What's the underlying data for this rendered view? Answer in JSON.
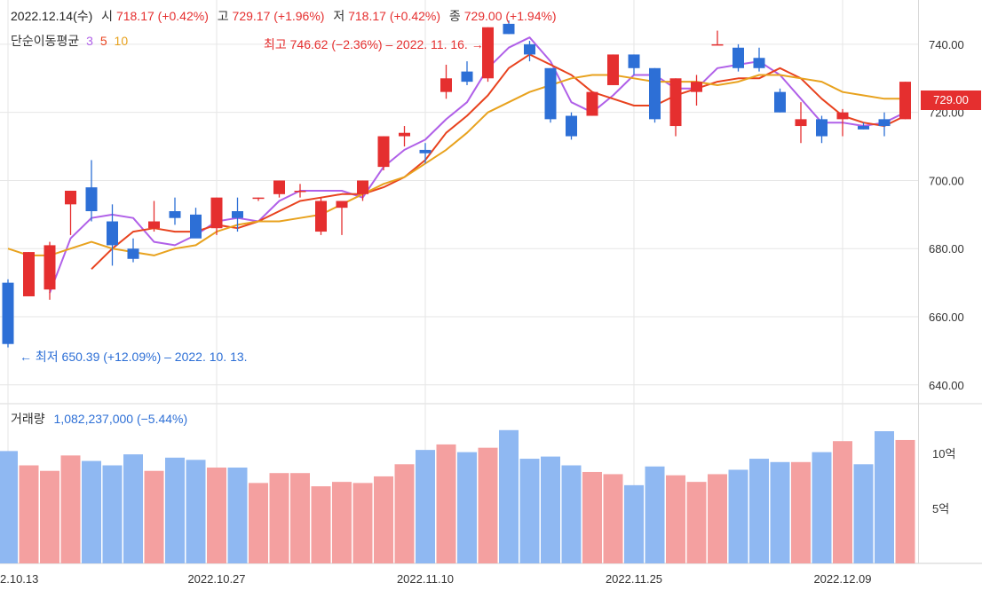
{
  "header": {
    "date": "2022.12.14(수)",
    "open_label": "시",
    "open_value": "718.17 (+0.42%)",
    "high_label": "고",
    "high_value": "729.17 (+1.96%)",
    "low_label": "저",
    "low_value": "718.17 (+0.42%)",
    "close_label": "종",
    "close_value": "729.00 (+1.94%)"
  },
  "moving_average": {
    "label": "단순이동평균",
    "periods": [
      "3",
      "5",
      "10"
    ],
    "colors": [
      "#b060e8",
      "#e8421e",
      "#e8a21e"
    ]
  },
  "volume_panel": {
    "label": "거래량",
    "value": "1,082,237,000 (−5.44%)"
  },
  "annotations": {
    "max": "최고 746.62 (−2.36%) – 2022. 11. 16.",
    "min": "최저 650.39 (+12.09%) – 2022. 10. 13."
  },
  "current_price_tag": "729.00",
  "colors": {
    "up": "#e52f2f",
    "down": "#2d6fd6",
    "up_volume": "#f4a0a0",
    "down_volume": "#8fb8f2",
    "grid": "#e6e6e6"
  },
  "chart_data": {
    "type": "candlestick",
    "x_ticks": [
      "2.10.13",
      "2022.10.27",
      "2022.11.10",
      "2022.11.25",
      "2022.12.09"
    ],
    "x_tick_index": [
      0,
      10,
      20,
      30,
      40
    ],
    "y_ticks": [
      "640.00",
      "660.00",
      "680.00",
      "700.00",
      "720.00",
      "740.00"
    ],
    "ylim": [
      635,
      753
    ],
    "volume_ticks": [
      "5억",
      "10억"
    ],
    "volume_tick_values": [
      5,
      10
    ],
    "volume_unit": "억",
    "volume_lim": [
      0,
      14.5
    ],
    "candles": [
      {
        "o": 670,
        "h": 671,
        "l": 651,
        "c": 652
      },
      {
        "o": 666,
        "h": 679,
        "l": 666,
        "c": 679
      },
      {
        "o": 668,
        "h": 682,
        "l": 665,
        "c": 681
      },
      {
        "o": 693,
        "h": 697,
        "l": 684,
        "c": 697
      },
      {
        "o": 698,
        "h": 706,
        "l": 688,
        "c": 691
      },
      {
        "o": 688,
        "h": 693,
        "l": 675,
        "c": 681
      },
      {
        "o": 680,
        "h": 683,
        "l": 676,
        "c": 677
      },
      {
        "o": 686,
        "h": 694,
        "l": 685,
        "c": 688
      },
      {
        "o": 691,
        "h": 695,
        "l": 687,
        "c": 689
      },
      {
        "o": 690,
        "h": 692,
        "l": 684,
        "c": 683
      },
      {
        "o": 686,
        "h": 695,
        "l": 684,
        "c": 695
      },
      {
        "o": 691,
        "h": 695,
        "l": 685,
        "c": 689
      },
      {
        "o": 695,
        "h": 695,
        "l": 694,
        "c": 695
      },
      {
        "o": 696,
        "h": 700,
        "l": 695,
        "c": 700
      },
      {
        "o": 697,
        "h": 699,
        "l": 695,
        "c": 697
      },
      {
        "o": 685,
        "h": 695,
        "l": 684,
        "c": 694
      },
      {
        "o": 692,
        "h": 694,
        "l": 684,
        "c": 694
      },
      {
        "o": 696,
        "h": 700,
        "l": 694,
        "c": 700
      },
      {
        "o": 704,
        "h": 713,
        "l": 703,
        "c": 713
      },
      {
        "o": 713,
        "h": 716,
        "l": 710,
        "c": 714
      },
      {
        "o": 709,
        "h": 711,
        "l": 705,
        "c": 708
      },
      {
        "o": 726,
        "h": 734,
        "l": 724,
        "c": 730
      },
      {
        "o": 732,
        "h": 735,
        "l": 728,
        "c": 729
      },
      {
        "o": 730,
        "h": 745,
        "l": 729,
        "c": 745
      },
      {
        "o": 746,
        "h": 747,
        "l": 743,
        "c": 743
      },
      {
        "o": 740,
        "h": 741,
        "l": 735,
        "c": 737
      },
      {
        "o": 733,
        "h": 733,
        "l": 717,
        "c": 718
      },
      {
        "o": 719,
        "h": 720,
        "l": 712,
        "c": 713
      },
      {
        "o": 719,
        "h": 726,
        "l": 719,
        "c": 726
      },
      {
        "o": 728,
        "h": 737,
        "l": 728,
        "c": 737
      },
      {
        "o": 737,
        "h": 737,
        "l": 731,
        "c": 733
      },
      {
        "o": 733,
        "h": 733,
        "l": 717,
        "c": 718
      },
      {
        "o": 716,
        "h": 730,
        "l": 713,
        "c": 730
      },
      {
        "o": 726,
        "h": 731,
        "l": 722,
        "c": 729
      },
      {
        "o": 740,
        "h": 744,
        "l": 740,
        "c": 740
      },
      {
        "o": 739,
        "h": 740,
        "l": 732,
        "c": 733
      },
      {
        "o": 736,
        "h": 739,
        "l": 732,
        "c": 733
      },
      {
        "o": 726,
        "h": 727,
        "l": 720,
        "c": 720
      },
      {
        "o": 716,
        "h": 723,
        "l": 711,
        "c": 718
      },
      {
        "o": 718,
        "h": 719,
        "l": 711,
        "c": 713
      },
      {
        "o": 718,
        "h": 721,
        "l": 713,
        "c": 720
      },
      {
        "o": 716,
        "h": 717,
        "l": 715,
        "c": 715
      },
      {
        "o": 718,
        "h": 720,
        "l": 713,
        "c": 716
      },
      {
        "o": 718,
        "h": 729,
        "l": 718,
        "c": 729
      }
    ],
    "volume": [
      10.2,
      8.9,
      8.4,
      9.8,
      9.3,
      8.9,
      9.9,
      8.4,
      9.6,
      9.4,
      8.7,
      8.7,
      7.3,
      8.2,
      8.2,
      7.0,
      7.4,
      7.3,
      7.9,
      9.0,
      10.3,
      10.8,
      10.1,
      10.5,
      12.1,
      9.5,
      9.7,
      8.9,
      8.3,
      8.1,
      7.1,
      8.8,
      8.0,
      7.4,
      8.1,
      8.5,
      9.5,
      9.2,
      9.2,
      10.1,
      11.1,
      9.0,
      12.0,
      11.2
    ],
    "ma3": [
      null,
      null,
      667,
      683,
      689,
      690,
      689,
      682,
      681,
      684,
      688,
      689,
      688,
      694,
      697,
      697,
      697,
      695,
      704,
      709,
      712,
      718,
      723,
      733,
      739,
      742,
      735,
      723,
      720,
      725,
      731,
      731,
      727,
      727,
      733,
      734,
      735,
      731,
      724,
      717,
      717,
      716,
      717,
      720
    ],
    "ma5": [
      null,
      null,
      null,
      null,
      674,
      680,
      685,
      686,
      685,
      685,
      687,
      686,
      688,
      691,
      694,
      695,
      696,
      696,
      698,
      701,
      706,
      714,
      719,
      725,
      733,
      737,
      734,
      731,
      726,
      724,
      722,
      722,
      725,
      727,
      729,
      730,
      730,
      733,
      730,
      724,
      719,
      717,
      716,
      719
    ],
    "ma10": [
      680,
      678,
      678,
      680,
      682,
      680,
      679,
      678,
      680,
      681,
      685,
      687,
      688,
      688,
      689,
      690,
      693,
      696,
      699,
      701,
      705,
      709,
      714,
      720,
      723,
      726,
      728,
      730,
      731,
      731,
      730,
      729,
      729,
      729,
      728,
      729,
      731,
      731,
      730,
      729,
      726,
      725,
      724,
      724
    ]
  }
}
